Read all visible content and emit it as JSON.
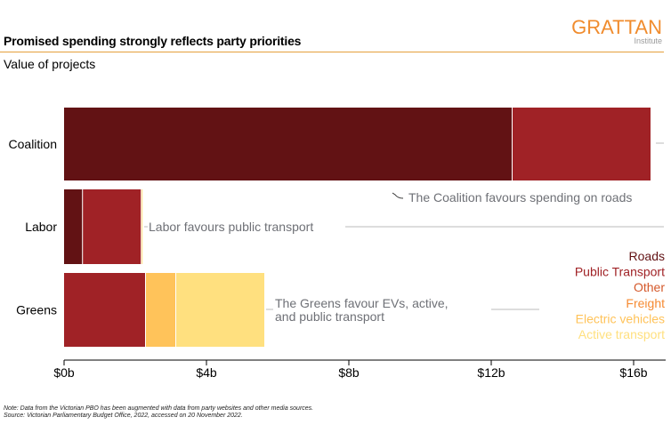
{
  "header": {
    "title": "Promised spending strongly reflects party priorities",
    "subtitle": "Value of projects",
    "logo_main": "GRATTAN",
    "logo_sub": "Institute"
  },
  "footer": {
    "note": "Note: Data from the Victorian PBO has been augmented with data from party websites and other media sources.",
    "source": "Source: Victorian Parliamentary Budget Office, 2022, accessed on 20 November 2022."
  },
  "chart_data": {
    "type": "bar",
    "orientation": "horizontal",
    "stacked": true,
    "title": "Promised spending strongly reflects party priorities",
    "subtitle": "Value of projects",
    "xlabel": "",
    "ylabel": "",
    "xlim": [
      0,
      17
    ],
    "x_ticks": [
      0,
      4,
      8,
      12,
      16
    ],
    "x_tick_labels": [
      "$0b",
      "$4b",
      "$8b",
      "$12b",
      "$16b"
    ],
    "categories": [
      "Coalition",
      "Labor",
      "Greens"
    ],
    "series": [
      {
        "name": "Roads",
        "color": "#621214",
        "values": [
          12.6,
          0.53,
          0
        ]
      },
      {
        "name": "Public Transport",
        "color": "#A02226",
        "values": [
          3.9,
          1.65,
          2.3
        ]
      },
      {
        "name": "Other",
        "color": "#D4582A",
        "values": [
          0,
          0,
          0
        ]
      },
      {
        "name": "Freight",
        "color": "#F68B33",
        "values": [
          0,
          0,
          0
        ]
      },
      {
        "name": "Electric vehicles",
        "color": "#FFC35A",
        "values": [
          0,
          0,
          0.85
        ]
      },
      {
        "name": "Active transport",
        "color": "#FFE07F",
        "values": [
          0,
          0.05,
          2.5
        ]
      }
    ],
    "legend": {
      "placement": "right",
      "entries": [
        "Roads",
        "Public Transport",
        "Other",
        "Freight",
        "Electric vehicles",
        "Active transport"
      ]
    },
    "annotations": [
      {
        "category": "Coalition",
        "text": "The Coalition favours spending on roads"
      },
      {
        "category": "Labor",
        "text": "Labor favours public transport"
      },
      {
        "category": "Greens",
        "text": [
          "The Greens favour EVs, active,",
          "and public transport"
        ]
      }
    ],
    "grid": false
  }
}
